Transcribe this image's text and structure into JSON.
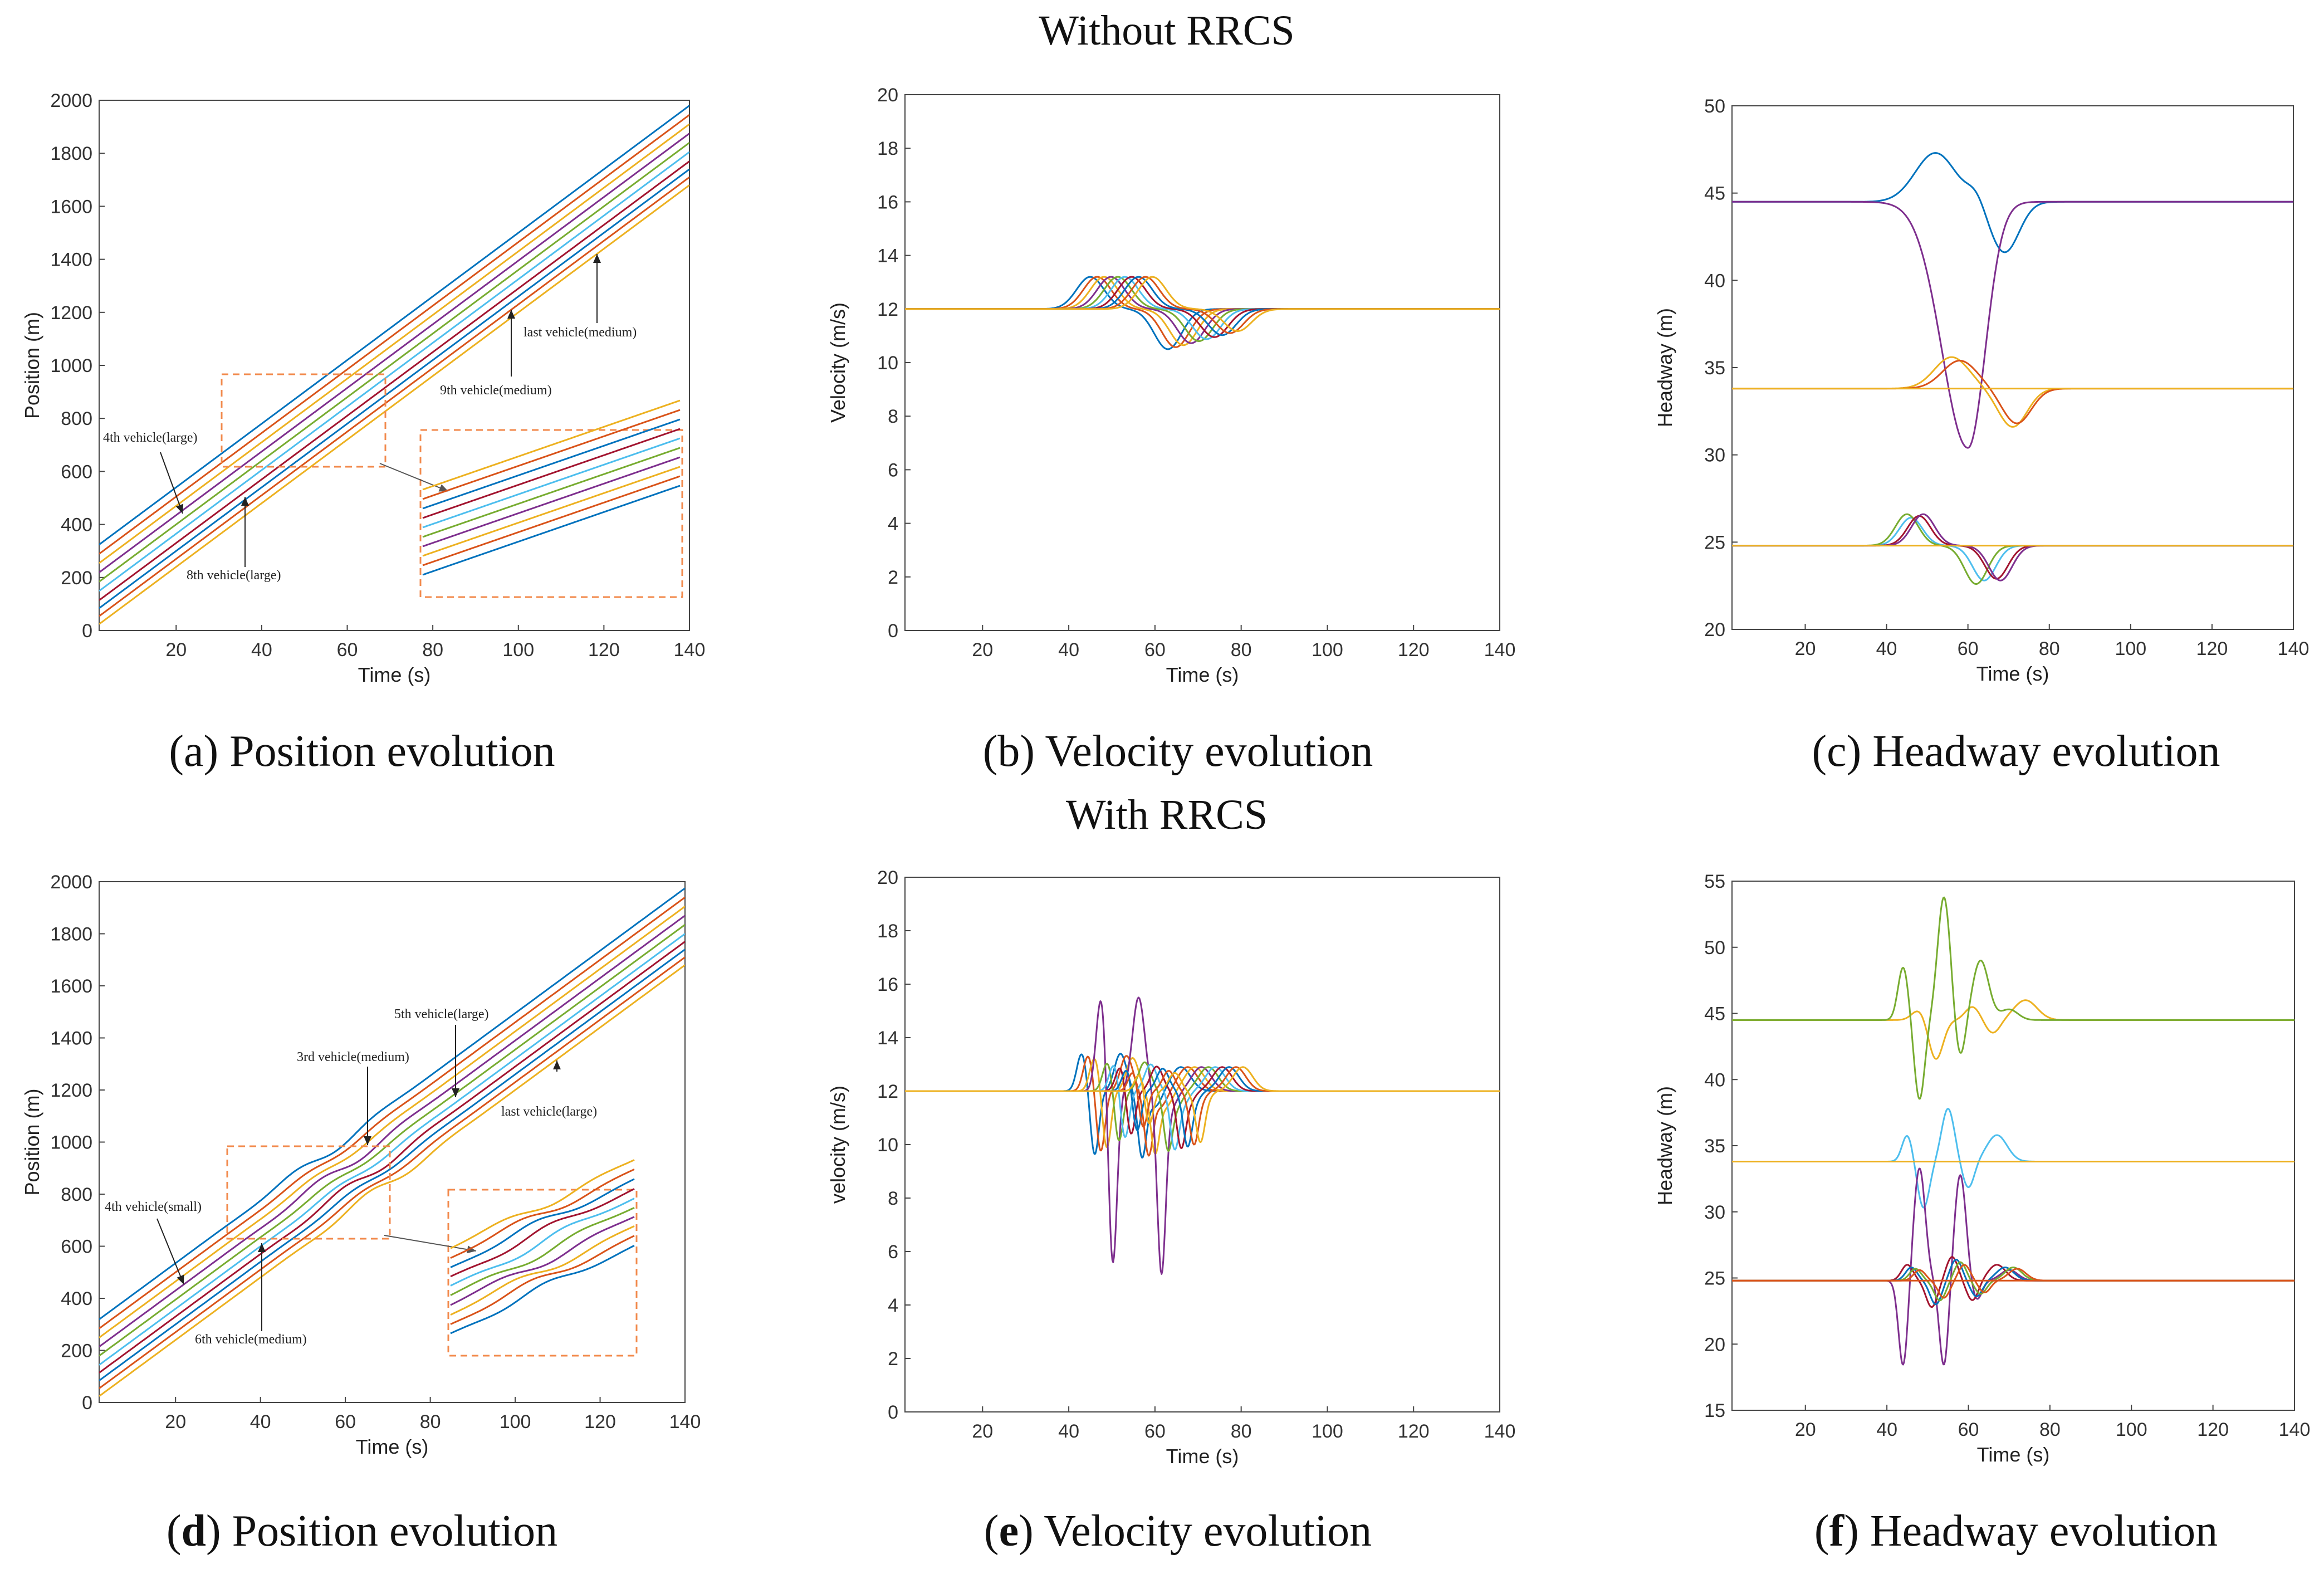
{
  "section_titles": {
    "top": "Without RRCS",
    "bottom": "With RRCS"
  },
  "captions": {
    "a": "(a) Position evolution",
    "b": "(b) Velocity evolution",
    "c": "(c) Headway evolution",
    "d_prefix": "(",
    "d_letter": "d",
    "d_rest": ") Position evolution",
    "e_prefix": "(",
    "e_letter": "e",
    "e_rest": ") Velocity evolution",
    "f_prefix": "(",
    "f_letter": "f",
    "f_rest": ") Headway evolution"
  },
  "colors": [
    "#0072bd",
    "#d95319",
    "#edb120",
    "#7e2f8e",
    "#77ac30",
    "#4dbeee",
    "#a2142f",
    "#0072bd",
    "#d95319",
    "#edb120"
  ],
  "annotation_color": "#f28a4c",
  "chart_data": [
    {
      "id": "a",
      "type": "line",
      "title": "",
      "xlabel": "Time (s)",
      "ylabel": "Position (m)",
      "xlim": [
        2,
        140
      ],
      "ylim": [
        0,
        2000
      ],
      "xticks": [
        20,
        40,
        60,
        80,
        100,
        120,
        140
      ],
      "yticks": [
        0,
        200,
        400,
        600,
        800,
        1000,
        1200,
        1400,
        1600,
        1800,
        2000
      ],
      "velocity_mps": 12,
      "initial_positions": [
        300,
        265,
        230,
        195,
        160,
        125,
        90,
        60,
        30,
        0
      ],
      "annotations": [
        "4th vehicle(large)",
        "8th vehicle(large)",
        "9th vehicle(medium)",
        "last vehicle(medium)"
      ]
    },
    {
      "id": "b",
      "type": "line",
      "title": "",
      "xlabel": "Time (s)",
      "ylabel": "Velocity (m/s)",
      "xlim": [
        2,
        140
      ],
      "ylim": [
        0,
        20
      ],
      "xticks": [
        20,
        40,
        60,
        80,
        100,
        120,
        140
      ],
      "yticks": [
        0,
        2,
        4,
        6,
        8,
        10,
        12,
        14,
        16,
        18,
        20
      ],
      "baseline": 12,
      "disturbance_start": 40,
      "peak": 13.3,
      "trough": 10.4
    },
    {
      "id": "c",
      "type": "line",
      "title": "",
      "xlabel": "Time (s)",
      "ylabel": "Headway (m)",
      "xlim": [
        2,
        140
      ],
      "ylim": [
        20,
        50
      ],
      "xticks": [
        20,
        40,
        60,
        80,
        100,
        120,
        140
      ],
      "yticks": [
        20,
        25,
        30,
        35,
        40,
        45,
        50
      ],
      "levels": [
        44.5,
        33.8,
        24.8
      ],
      "extremes": {
        "max": 47.2,
        "min": 30.4
      }
    },
    {
      "id": "d",
      "type": "line",
      "title": "",
      "xlabel": "Time (s)",
      "ylabel": "Position (m)",
      "xlim": [
        2,
        140
      ],
      "ylim": [
        0,
        2000
      ],
      "xticks": [
        20,
        40,
        60,
        80,
        100,
        120,
        140
      ],
      "yticks": [
        0,
        200,
        400,
        600,
        800,
        1000,
        1200,
        1400,
        1600,
        1800,
        2000
      ],
      "velocity_mps": 12,
      "initial_positions": [
        295,
        260,
        225,
        190,
        155,
        120,
        90,
        60,
        30,
        0
      ],
      "annotations": [
        "5th vehicle(large)",
        "3rd vehicle(medium)",
        "last vehicle(large)",
        "4th vehicle(small)",
        "6th vehicle(medium)"
      ]
    },
    {
      "id": "e",
      "type": "line",
      "title": "",
      "xlabel": "Time (s)",
      "ylabel": "velocity (m/s)",
      "xlim": [
        2,
        140
      ],
      "ylim": [
        0,
        20
      ],
      "xticks": [
        20,
        40,
        60,
        80,
        100,
        120,
        140
      ],
      "yticks": [
        0,
        2,
        4,
        6,
        8,
        10,
        12,
        14,
        16,
        18,
        20
      ],
      "baseline": 12,
      "disturbance_start": 40,
      "peak": 15.6,
      "trough": 5.3
    },
    {
      "id": "f",
      "type": "line",
      "title": "",
      "xlabel": "Time (s)",
      "ylabel": "Headway (m)",
      "xlim": [
        2,
        140
      ],
      "ylim": [
        15,
        55
      ],
      "xticks": [
        20,
        40,
        60,
        80,
        100,
        120,
        140
      ],
      "yticks": [
        15,
        20,
        25,
        30,
        35,
        40,
        45,
        50,
        55
      ],
      "levels": [
        44.5,
        33.8,
        24.8
      ],
      "extremes": {
        "max": 53.8,
        "min": 18.2
      }
    }
  ]
}
